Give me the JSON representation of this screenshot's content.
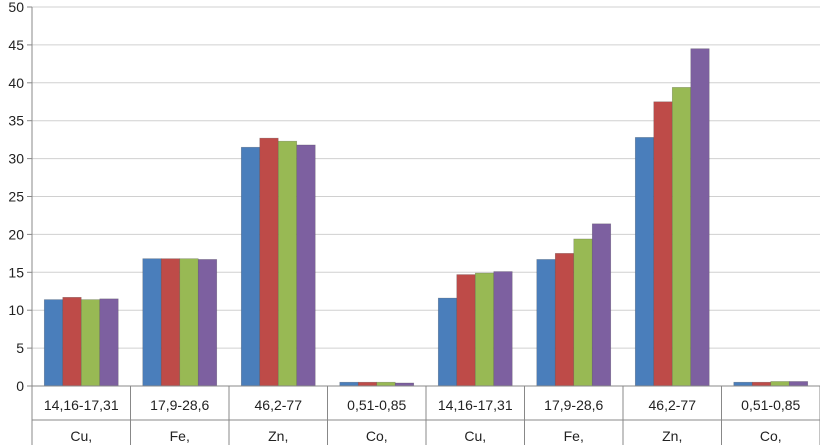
{
  "chart_data": {
    "type": "bar",
    "title": "",
    "xlabel": "",
    "ylabel": "",
    "ylim": [
      0,
      50
    ],
    "yticks": [
      0,
      5,
      10,
      15,
      20,
      25,
      30,
      35,
      40,
      45,
      50
    ],
    "grid": true,
    "legend": "none",
    "categories": [
      {
        "range": "14,16-17,31",
        "element": "Cu,"
      },
      {
        "range": "17,9-28,6",
        "element": "Fe,"
      },
      {
        "range": "46,2-77",
        "element": "Zn,"
      },
      {
        "range": "0,51-0,85",
        "element": "Co,"
      },
      {
        "range": "14,16-17,31",
        "element": "Cu,"
      },
      {
        "range": "17,9-28,6",
        "element": "Fe,"
      },
      {
        "range": "46,2-77",
        "element": "Zn,"
      },
      {
        "range": "0,51-0,85",
        "element": "Co,"
      }
    ],
    "series": [
      {
        "color": "#4a7ebb",
        "values": [
          11.4,
          16.8,
          31.5,
          0.5,
          11.6,
          16.7,
          32.8,
          0.5
        ]
      },
      {
        "color": "#be4b48",
        "values": [
          11.7,
          16.8,
          32.7,
          0.5,
          14.7,
          17.5,
          37.5,
          0.5
        ]
      },
      {
        "color": "#98b954",
        "values": [
          11.4,
          16.8,
          32.3,
          0.5,
          14.9,
          19.4,
          39.4,
          0.6
        ]
      },
      {
        "color": "#7d60a0",
        "values": [
          11.5,
          16.7,
          31.8,
          0.4,
          15.1,
          21.4,
          44.5,
          0.6
        ]
      }
    ]
  }
}
